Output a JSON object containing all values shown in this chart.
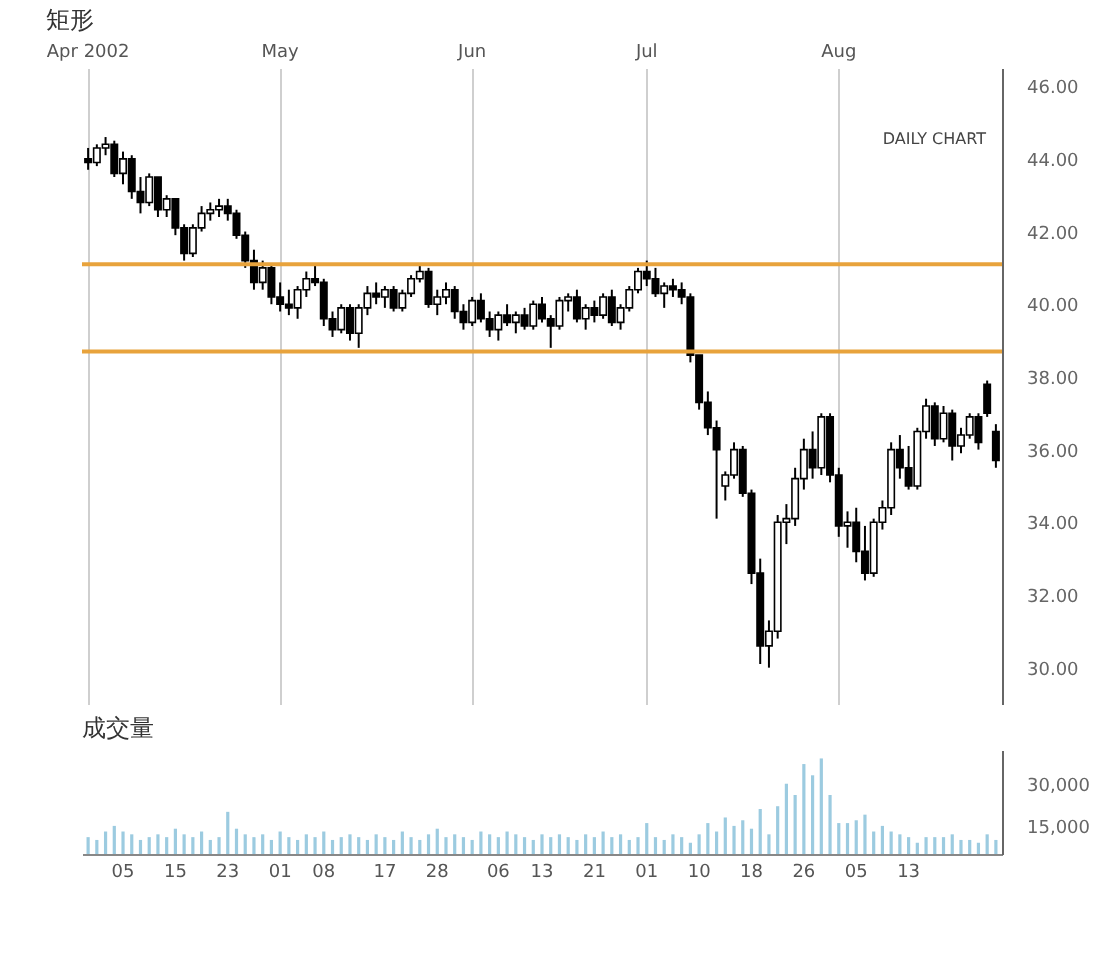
{
  "chart_data": [
    {
      "type": "candlestick",
      "title": "矩形",
      "annotations": [
        "DAILY CHART"
      ],
      "categories": [
        "Apr 2002",
        null,
        null,
        null,
        null,
        null,
        null,
        null,
        null,
        null,
        null,
        null,
        null,
        null,
        null,
        null,
        null,
        null,
        null,
        null,
        null,
        null,
        "May",
        null,
        null,
        null,
        null,
        null,
        null,
        null,
        null,
        null,
        null,
        null,
        null,
        null,
        null,
        null,
        null,
        null,
        null,
        null,
        null,
        null,
        "Jun",
        null,
        null,
        null,
        null,
        null,
        null,
        null,
        null,
        null,
        null,
        null,
        null,
        null,
        null,
        null,
        null,
        null,
        null,
        null,
        "Jul",
        null,
        null,
        null,
        null,
        null,
        null,
        null,
        null,
        null,
        null,
        null,
        null,
        null,
        null,
        null,
        null,
        null,
        null,
        null,
        null,
        null,
        "Aug",
        null,
        null,
        null,
        null,
        null,
        null,
        null,
        null,
        null,
        null,
        null,
        null,
        null,
        null,
        null,
        null,
        null,
        null
      ],
      "series": [
        {
          "color": "#000000",
          "ohlc": [
            [
              44.0,
              44.3,
              43.7,
              43.9
            ],
            [
              43.9,
              44.4,
              43.8,
              44.3
            ],
            [
              44.3,
              44.6,
              44.1,
              44.4
            ],
            [
              44.4,
              44.5,
              43.5,
              43.6
            ],
            [
              43.6,
              44.2,
              43.3,
              44.0
            ],
            [
              44.0,
              44.1,
              42.9,
              43.1
            ],
            [
              43.1,
              43.5,
              42.5,
              42.8
            ],
            [
              42.8,
              43.6,
              42.7,
              43.5
            ],
            [
              43.5,
              43.5,
              42.4,
              42.6
            ],
            [
              42.6,
              43.0,
              42.4,
              42.9
            ],
            [
              42.9,
              42.9,
              41.9,
              42.1
            ],
            [
              42.1,
              42.2,
              41.2,
              41.4
            ],
            [
              41.4,
              42.2,
              41.3,
              42.1
            ],
            [
              42.1,
              42.7,
              42.0,
              42.5
            ],
            [
              42.5,
              42.8,
              42.3,
              42.6
            ],
            [
              42.6,
              42.9,
              42.4,
              42.7
            ],
            [
              42.7,
              42.9,
              42.3,
              42.5
            ],
            [
              42.5,
              42.6,
              41.8,
              41.9
            ],
            [
              41.9,
              42.0,
              41.0,
              41.2
            ],
            [
              41.2,
              41.5,
              40.4,
              40.6
            ],
            [
              40.6,
              41.2,
              40.4,
              41.0
            ],
            [
              41.0,
              41.1,
              40.0,
              40.2
            ],
            [
              40.2,
              40.6,
              39.8,
              40.0
            ],
            [
              40.0,
              40.4,
              39.7,
              39.9
            ],
            [
              39.9,
              40.5,
              39.6,
              40.4
            ],
            [
              40.4,
              40.9,
              40.2,
              40.7
            ],
            [
              40.7,
              41.1,
              40.5,
              40.6
            ],
            [
              40.6,
              40.7,
              39.4,
              39.6
            ],
            [
              39.6,
              39.8,
              39.1,
              39.3
            ],
            [
              39.3,
              40.0,
              39.2,
              39.9
            ],
            [
              39.9,
              40.0,
              39.0,
              39.2
            ],
            [
              39.2,
              40.0,
              38.8,
              39.9
            ],
            [
              39.9,
              40.5,
              39.7,
              40.3
            ],
            [
              40.3,
              40.6,
              40.0,
              40.2
            ],
            [
              40.2,
              40.5,
              39.9,
              40.4
            ],
            [
              40.4,
              40.5,
              39.8,
              39.9
            ],
            [
              39.9,
              40.4,
              39.8,
              40.3
            ],
            [
              40.3,
              40.8,
              40.2,
              40.7
            ],
            [
              40.7,
              41.1,
              40.6,
              40.9
            ],
            [
              40.9,
              41.0,
              39.9,
              40.0
            ],
            [
              40.0,
              40.4,
              39.7,
              40.2
            ],
            [
              40.2,
              40.6,
              40.0,
              40.4
            ],
            [
              40.4,
              40.5,
              39.6,
              39.8
            ],
            [
              39.8,
              40.0,
              39.3,
              39.5
            ],
            [
              39.5,
              40.2,
              39.4,
              40.1
            ],
            [
              40.1,
              40.3,
              39.5,
              39.6
            ],
            [
              39.6,
              39.8,
              39.1,
              39.3
            ],
            [
              39.3,
              39.8,
              39.0,
              39.7
            ],
            [
              39.7,
              40.0,
              39.4,
              39.5
            ],
            [
              39.5,
              39.8,
              39.2,
              39.7
            ],
            [
              39.7,
              39.9,
              39.3,
              39.4
            ],
            [
              39.4,
              40.1,
              39.3,
              40.0
            ],
            [
              40.0,
              40.2,
              39.5,
              39.6
            ],
            [
              39.6,
              39.7,
              38.8,
              39.4
            ],
            [
              39.4,
              40.2,
              39.3,
              40.1
            ],
            [
              40.1,
              40.3,
              39.8,
              40.2
            ],
            [
              40.2,
              40.4,
              39.5,
              39.6
            ],
            [
              39.6,
              40.0,
              39.3,
              39.9
            ],
            [
              39.9,
              40.1,
              39.5,
              39.7
            ],
            [
              39.7,
              40.3,
              39.6,
              40.2
            ],
            [
              40.2,
              40.4,
              39.4,
              39.5
            ],
            [
              39.5,
              40.0,
              39.3,
              39.9
            ],
            [
              39.9,
              40.5,
              39.8,
              40.4
            ],
            [
              40.4,
              41.0,
              40.3,
              40.9
            ],
            [
              40.9,
              41.2,
              40.5,
              40.7
            ],
            [
              40.7,
              41.0,
              40.2,
              40.3
            ],
            [
              40.3,
              40.6,
              39.9,
              40.5
            ],
            [
              40.5,
              40.7,
              40.2,
              40.4
            ],
            [
              40.4,
              40.6,
              40.0,
              40.2
            ],
            [
              40.2,
              40.3,
              38.4,
              38.6
            ],
            [
              38.6,
              38.6,
              37.1,
              37.3
            ],
            [
              37.3,
              37.6,
              36.4,
              36.6
            ],
            [
              36.6,
              36.8,
              34.1,
              36.0
            ],
            [
              35.0,
              35.4,
              34.6,
              35.3
            ],
            [
              35.3,
              36.2,
              35.2,
              36.0
            ],
            [
              36.0,
              36.1,
              34.7,
              34.8
            ],
            [
              34.8,
              34.9,
              32.3,
              32.6
            ],
            [
              32.6,
              33.0,
              30.1,
              30.6
            ],
            [
              30.6,
              31.3,
              30.0,
              31.0
            ],
            [
              31.0,
              34.2,
              30.8,
              34.0
            ],
            [
              34.0,
              34.5,
              33.4,
              34.1
            ],
            [
              34.1,
              35.5,
              33.9,
              35.2
            ],
            [
              35.2,
              36.3,
              34.9,
              36.0
            ],
            [
              36.0,
              36.5,
              35.2,
              35.5
            ],
            [
              35.5,
              37.0,
              35.3,
              36.9
            ],
            [
              36.9,
              37.0,
              35.1,
              35.3
            ],
            [
              35.3,
              35.5,
              33.6,
              33.9
            ],
            [
              33.9,
              34.3,
              33.3,
              34.0
            ],
            [
              34.0,
              34.4,
              32.9,
              33.2
            ],
            [
              33.2,
              33.9,
              32.4,
              32.6
            ],
            [
              32.6,
              34.1,
              32.5,
              34.0
            ],
            [
              34.0,
              34.6,
              33.8,
              34.4
            ],
            [
              34.4,
              36.2,
              34.2,
              36.0
            ],
            [
              36.0,
              36.4,
              35.2,
              35.5
            ],
            [
              35.5,
              36.1,
              34.9,
              35.0
            ],
            [
              35.0,
              36.6,
              34.9,
              36.5
            ],
            [
              36.5,
              37.4,
              36.3,
              37.2
            ],
            [
              37.2,
              37.3,
              36.1,
              36.3
            ],
            [
              36.3,
              37.2,
              36.2,
              37.0
            ],
            [
              37.0,
              37.1,
              35.7,
              36.1
            ],
            [
              36.1,
              36.6,
              35.9,
              36.4
            ],
            [
              36.4,
              37.0,
              36.3,
              36.9
            ],
            [
              36.9,
              37.0,
              36.0,
              36.2
            ],
            [
              37.8,
              37.9,
              36.9,
              37.0
            ],
            [
              36.5,
              36.7,
              35.5,
              35.7
            ]
          ]
        }
      ],
      "ylim": [
        29,
        46.5
      ],
      "yticks": [
        {
          "value": 30,
          "label": "30.00"
        },
        {
          "value": 32,
          "label": "32.00"
        },
        {
          "value": 34,
          "label": "34.00"
        },
        {
          "value": 36,
          "label": "36.00"
        },
        {
          "value": 38,
          "label": "38.00"
        },
        {
          "value": 40,
          "label": "40.00"
        },
        {
          "value": 42,
          "label": "42.00"
        },
        {
          "value": 44,
          "label": "44.00"
        },
        {
          "value": 46,
          "label": "46.00"
        }
      ],
      "grid": "x",
      "ref_lines": [
        {
          "axis": "y",
          "value": 41.1,
          "color": "#e8a33c"
        },
        {
          "axis": "y",
          "value": 38.7,
          "color": "#e8a33c"
        }
      ]
    },
    {
      "type": "bar",
      "title": "成交量",
      "categories": [
        null,
        null,
        null,
        null,
        "05",
        null,
        null,
        null,
        null,
        null,
        "15",
        null,
        null,
        null,
        null,
        null,
        "23",
        null,
        null,
        null,
        null,
        null,
        "01",
        null,
        null,
        null,
        null,
        "08",
        null,
        null,
        null,
        null,
        null,
        null,
        "17",
        null,
        null,
        null,
        null,
        null,
        "28",
        null,
        null,
        null,
        null,
        null,
        null,
        "06",
        null,
        null,
        null,
        null,
        "13",
        null,
        null,
        null,
        null,
        null,
        "21",
        null,
        null,
        null,
        null,
        null,
        "01",
        null,
        null,
        null,
        null,
        null,
        "10",
        null,
        null,
        null,
        null,
        null,
        "18",
        null,
        null,
        null,
        null,
        null,
        "26",
        null,
        null,
        null,
        null,
        null,
        "05",
        null,
        null,
        null,
        null,
        null,
        "13",
        null,
        null,
        null,
        null,
        null,
        null,
        null,
        null,
        null,
        null
      ],
      "series": [
        {
          "color": "#9ccbe0",
          "values": [
            11000,
            10000,
            13000,
            15000,
            13000,
            12000,
            10000,
            11000,
            12000,
            11000,
            14000,
            12000,
            11000,
            13000,
            10000,
            11000,
            20000,
            14000,
            12000,
            11000,
            12000,
            10000,
            13000,
            11000,
            10000,
            12000,
            11000,
            13000,
            10000,
            11000,
            12000,
            11000,
            10000,
            12000,
            11000,
            10000,
            13000,
            11000,
            10000,
            12000,
            14000,
            11000,
            12000,
            11000,
            10000,
            13000,
            12000,
            11000,
            13000,
            12000,
            11000,
            10000,
            12000,
            11000,
            12000,
            11000,
            10000,
            12000,
            11000,
            13000,
            11000,
            12000,
            10000,
            11000,
            16000,
            11000,
            10000,
            12000,
            11000,
            9000,
            12000,
            16000,
            13000,
            18000,
            15000,
            17000,
            14000,
            21000,
            12000,
            22000,
            30000,
            26000,
            37000,
            33000,
            39000,
            26000,
            16000,
            16000,
            17000,
            19000,
            13000,
            15000,
            13000,
            12000,
            11000,
            9000,
            11000,
            11000,
            11000,
            12000,
            10000,
            10000,
            9000,
            12000,
            10000
          ]
        }
      ],
      "ylim": [
        5000,
        42000
      ],
      "yticks": [
        {
          "value": 15000,
          "label": "15,000"
        },
        {
          "value": 30000,
          "label": "30,000"
        }
      ]
    }
  ]
}
